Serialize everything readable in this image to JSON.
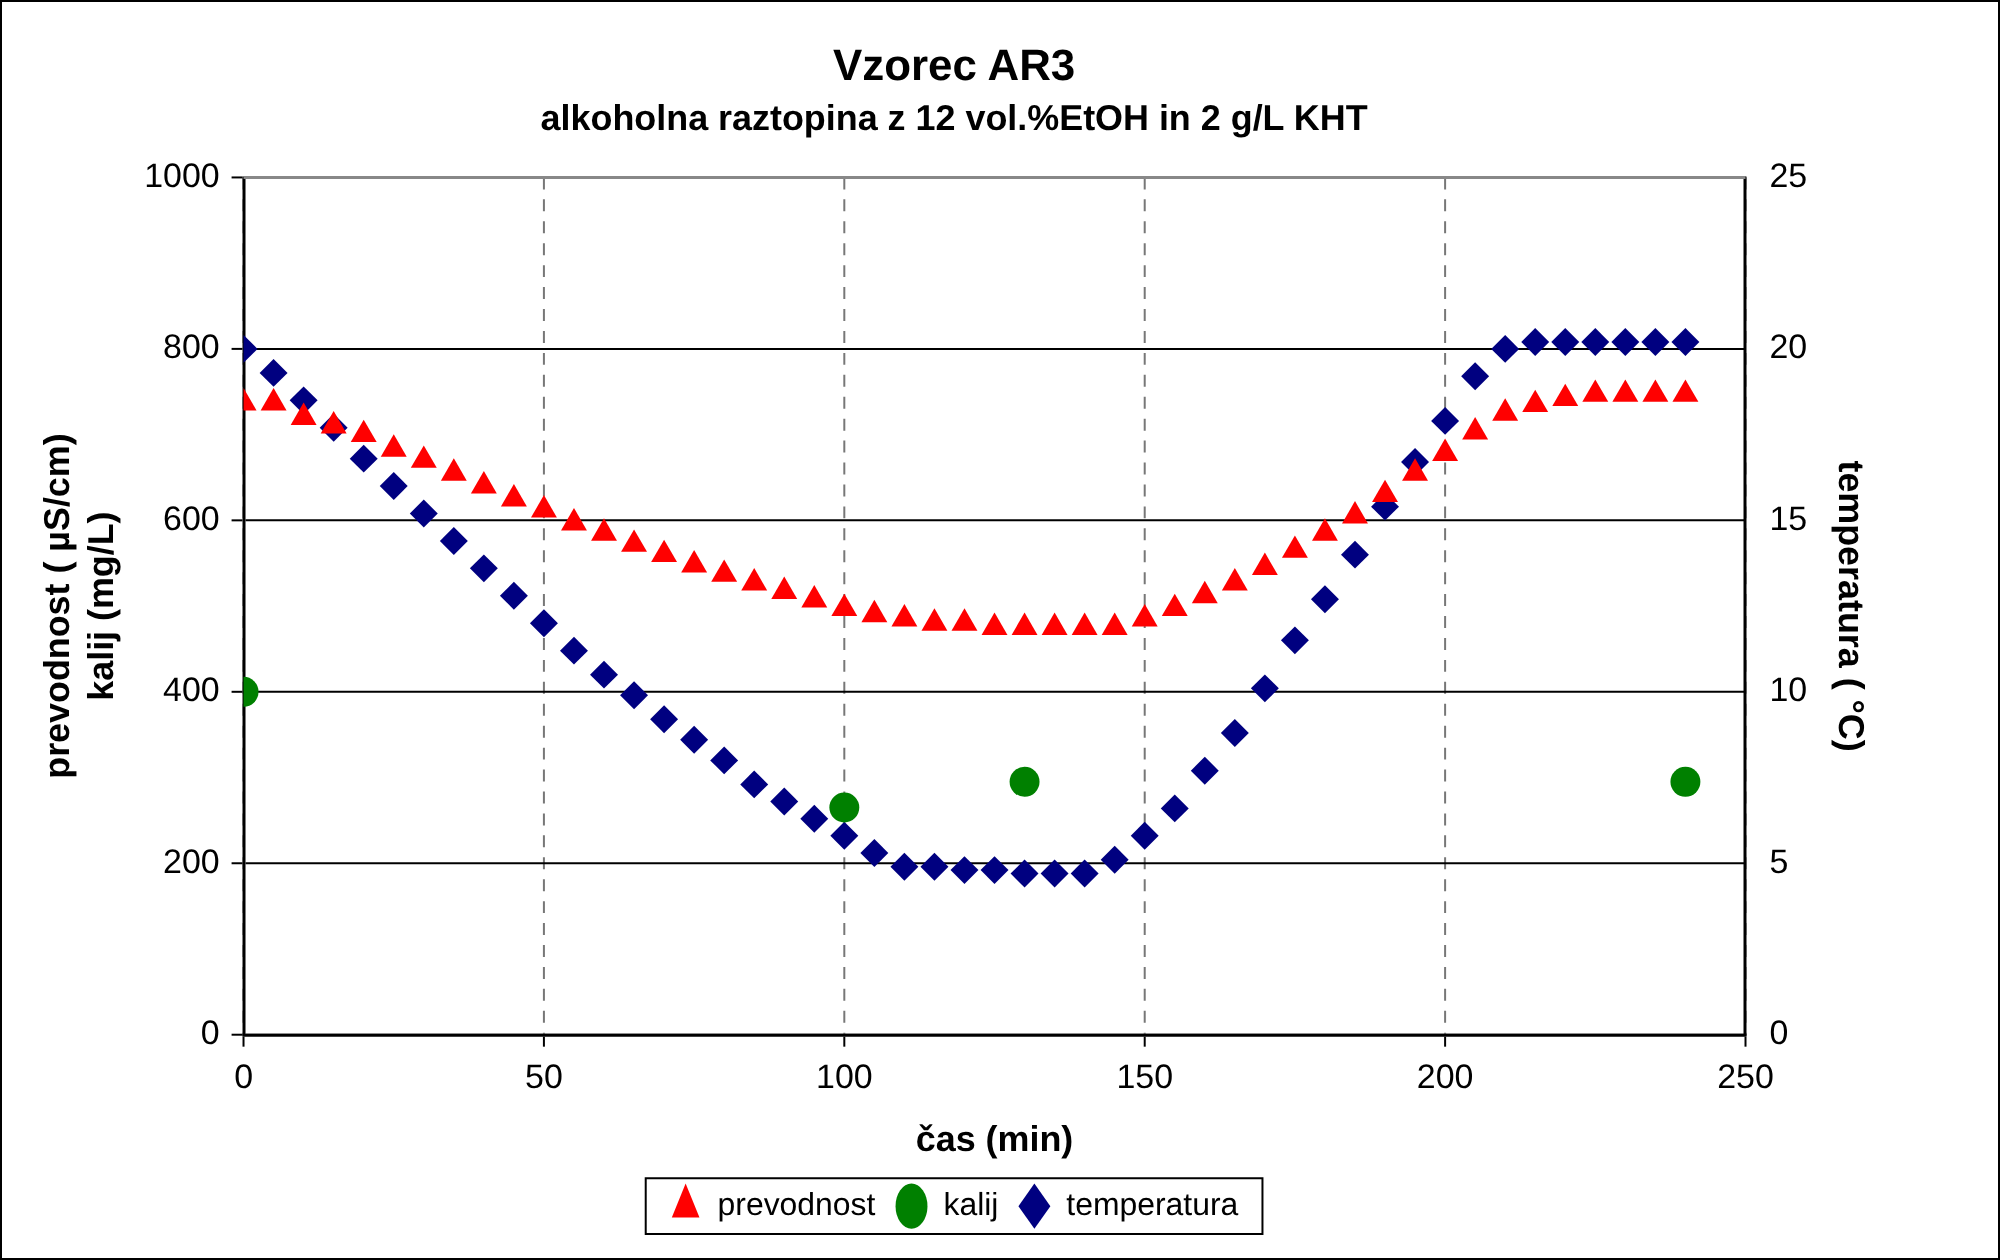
{
  "chart_data": {
    "type": "scatter",
    "title": "Vzorec AR3",
    "subtitle": "alkoholna raztopina z 12 vol.%EtOH in 2 g/L KHT",
    "xlabel": "čas (min)",
    "ylabel": "prevodnost ( µS/cm)\nkalij (mg/L)",
    "y2label": "temperatura ( °C)",
    "xlim": [
      0,
      250
    ],
    "xticks": [
      0,
      50,
      100,
      150,
      200,
      250
    ],
    "ylim": [
      0,
      1000
    ],
    "yticks": [
      0,
      200,
      400,
      600,
      800,
      1000
    ],
    "y2lim": [
      0,
      25
    ],
    "y2ticks": [
      0,
      5,
      10,
      15,
      20,
      25
    ],
    "grid": true,
    "legend": "bottom",
    "series": [
      {
        "name": "prevodnost",
        "color": "#ff0000",
        "marker": "triangle",
        "x": [
          0,
          5,
          10,
          15,
          20,
          25,
          30,
          35,
          40,
          45,
          50,
          55,
          60,
          65,
          70,
          75,
          80,
          85,
          90,
          95,
          100,
          105,
          110,
          115,
          120,
          125,
          130,
          135,
          140,
          145,
          150,
          155,
          160,
          165,
          170,
          175,
          180,
          185,
          190,
          195,
          200,
          205,
          210,
          215,
          220,
          225,
          230,
          235,
          240
        ],
        "values": [
          737,
          737,
          720,
          710,
          700,
          683,
          670,
          655,
          640,
          625,
          612,
          597,
          585,
          572,
          560,
          548,
          537,
          527,
          517,
          507,
          497,
          490,
          485,
          480,
          480,
          475,
          475,
          475,
          475,
          475,
          485,
          497,
          512,
          527,
          545,
          565,
          585,
          605,
          630,
          655,
          678,
          703,
          725,
          735,
          742,
          747,
          747,
          747,
          747
        ]
      },
      {
        "name": "kalij",
        "color": "#008000",
        "marker": "circle",
        "x": [
          0,
          100,
          130,
          240
        ],
        "values": [
          400,
          265,
          295,
          295
        ]
      },
      {
        "name": "temperatura",
        "color": "#000080",
        "marker": "diamond",
        "axis": "y2",
        "x": [
          0,
          5,
          10,
          15,
          20,
          25,
          30,
          35,
          40,
          45,
          50,
          55,
          60,
          65,
          70,
          75,
          80,
          85,
          90,
          95,
          100,
          105,
          110,
          115,
          120,
          125,
          130,
          135,
          140,
          145,
          150,
          155,
          160,
          165,
          170,
          175,
          180,
          185,
          190,
          195,
          200,
          205,
          210,
          215,
          220,
          225,
          230,
          235,
          240
        ],
        "values": [
          20,
          19.3,
          18.5,
          17.7,
          16.8,
          16.0,
          15.2,
          14.4,
          13.6,
          12.8,
          12.0,
          11.2,
          10.5,
          9.9,
          9.2,
          8.6,
          8.0,
          7.3,
          6.8,
          6.3,
          5.8,
          5.3,
          4.9,
          4.9,
          4.8,
          4.8,
          4.7,
          4.7,
          4.7,
          5.1,
          5.8,
          6.6,
          7.7,
          8.8,
          10.1,
          11.5,
          12.7,
          14.0,
          15.4,
          16.7,
          17.9,
          19.2,
          20.0,
          20.2,
          20.2,
          20.2,
          20.2,
          20.2,
          20.2
        ]
      }
    ]
  }
}
